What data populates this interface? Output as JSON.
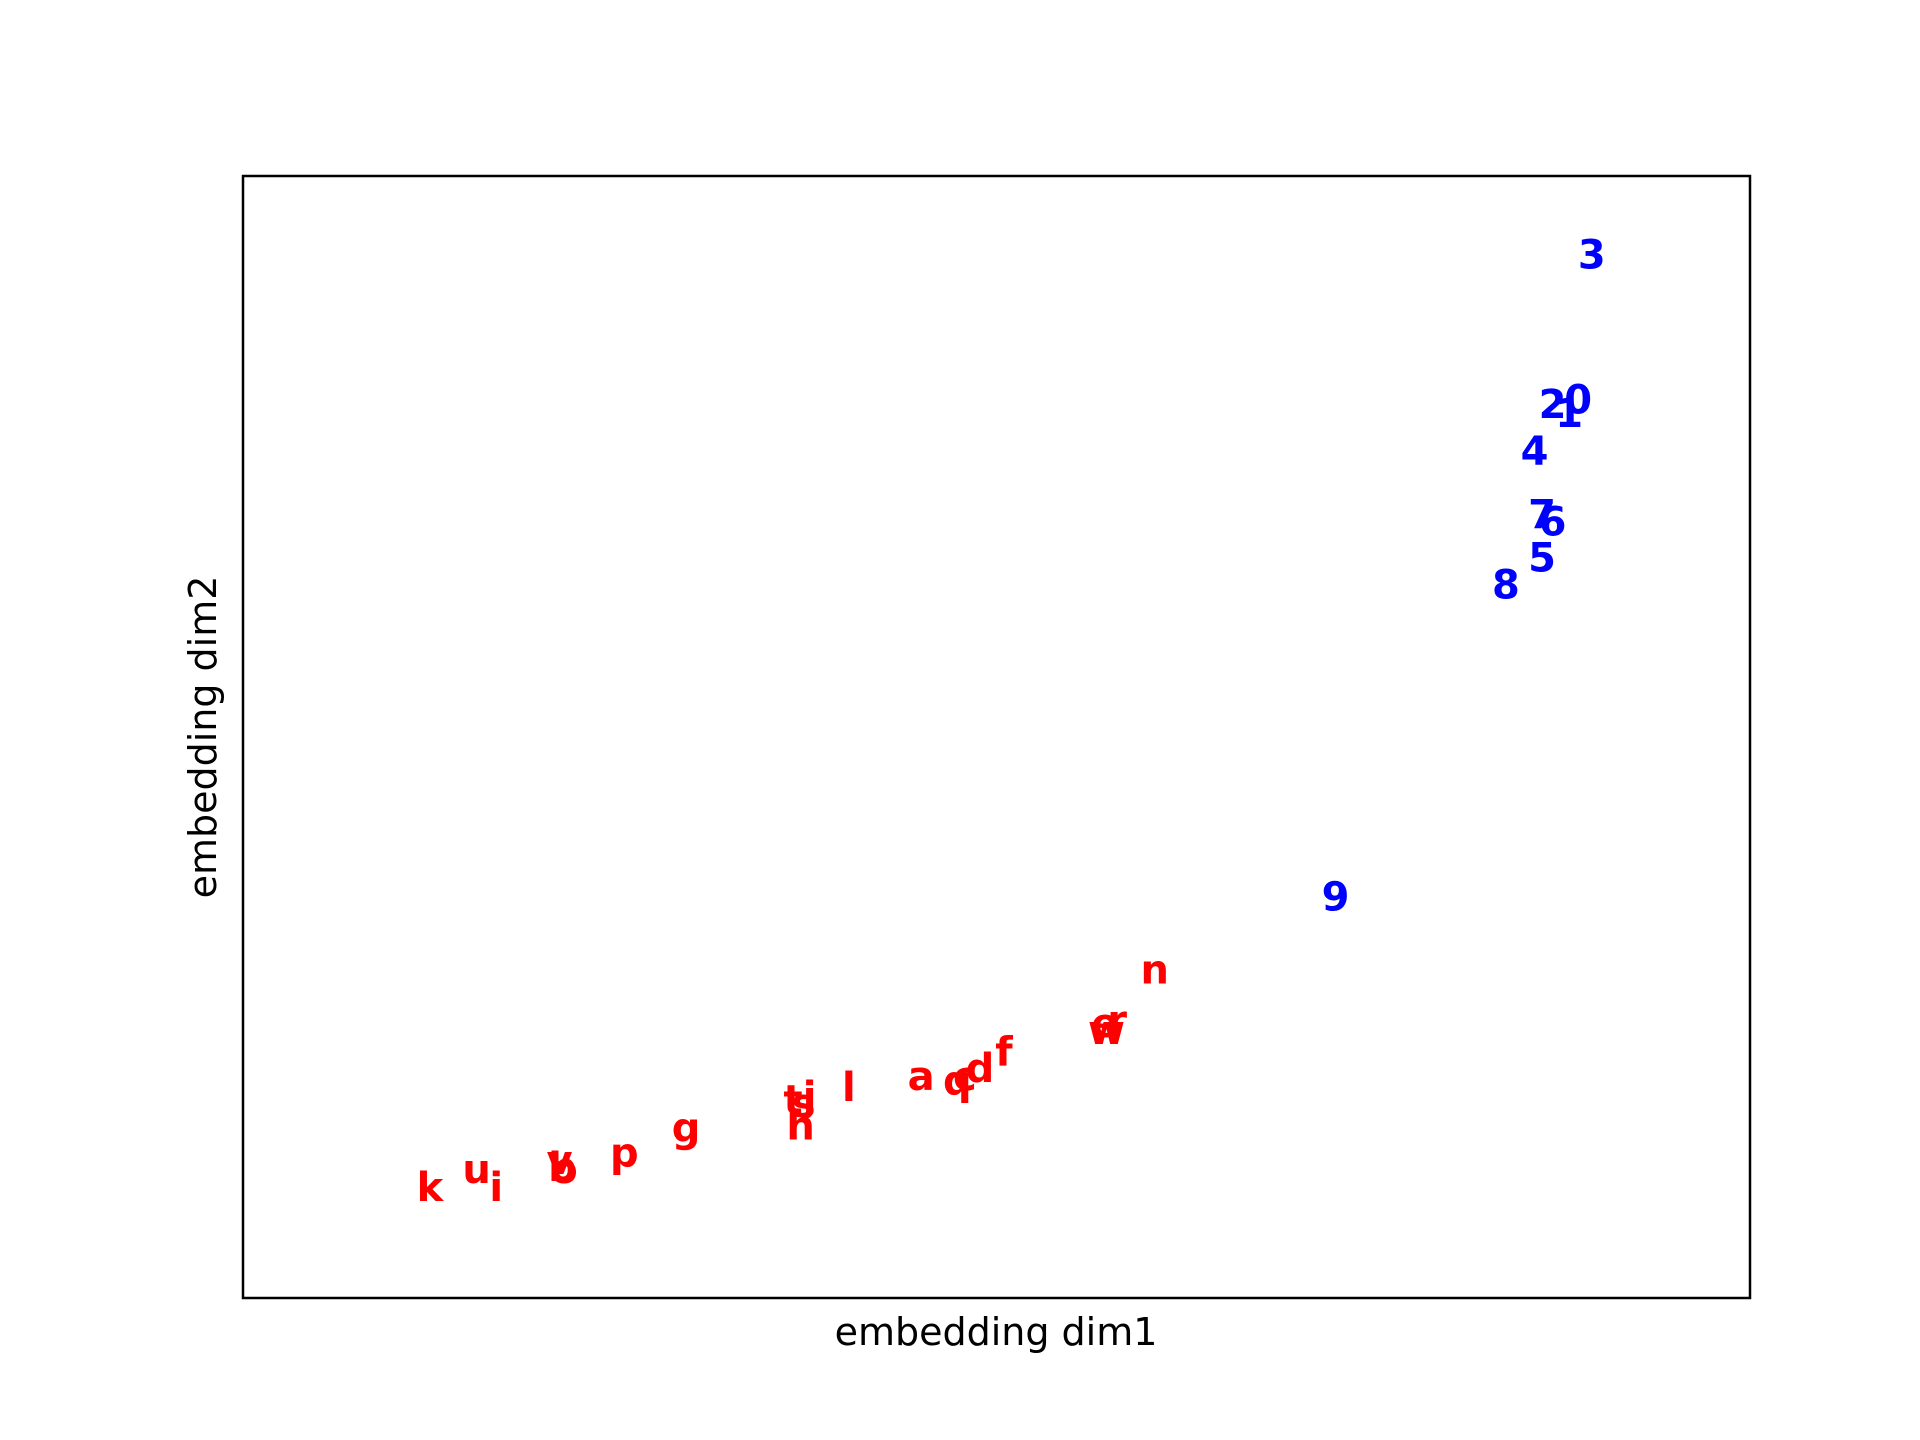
{
  "chart_data": {
    "type": "scatter",
    "title": "",
    "xlabel": "embedding dim1",
    "ylabel": "embedding dim2",
    "xlim": [
      0,
      100
    ],
    "ylim": [
      0,
      100
    ],
    "xticks_visible": false,
    "yticks_visible": false,
    "grid": false,
    "point_style": "text-labels",
    "colors": {
      "letters": "#ff0000",
      "digits": "#0000ff"
    },
    "points": [
      {
        "label": "3",
        "x": 89.5,
        "y": 92.9,
        "color": "#0000ff"
      },
      {
        "label": "0",
        "x": 88.6,
        "y": 80.0,
        "color": "#0000ff"
      },
      {
        "label": "2",
        "x": 86.9,
        "y": 79.6,
        "color": "#0000ff"
      },
      {
        "label": "1",
        "x": 88.0,
        "y": 78.8,
        "color": "#0000ff"
      },
      {
        "label": "4",
        "x": 85.7,
        "y": 75.4,
        "color": "#0000ff"
      },
      {
        "label": "7",
        "x": 86.2,
        "y": 69.8,
        "color": "#0000ff"
      },
      {
        "label": "6",
        "x": 86.9,
        "y": 69.1,
        "color": "#0000ff"
      },
      {
        "label": "5",
        "x": 86.2,
        "y": 65.9,
        "color": "#0000ff"
      },
      {
        "label": "8",
        "x": 83.8,
        "y": 63.5,
        "color": "#0000ff"
      },
      {
        "label": "9",
        "x": 72.5,
        "y": 35.7,
        "color": "#0000ff"
      },
      {
        "label": "n",
        "x": 60.5,
        "y": 29.2,
        "color": "#ff0000"
      },
      {
        "label": "r",
        "x": 58.0,
        "y": 24.7,
        "color": "#ff0000"
      },
      {
        "label": "e",
        "x": 57.2,
        "y": 24.4,
        "color": "#ff0000"
      },
      {
        "label": "w",
        "x": 57.3,
        "y": 23.8,
        "color": "#ff0000"
      },
      {
        "label": "f",
        "x": 50.5,
        "y": 21.9,
        "color": "#ff0000"
      },
      {
        "label": "d",
        "x": 48.9,
        "y": 20.4,
        "color": "#ff0000"
      },
      {
        "label": "c",
        "x": 47.9,
        "y": 19.7,
        "color": "#ff0000"
      },
      {
        "label": "a",
        "x": 45.0,
        "y": 19.7,
        "color": "#ff0000"
      },
      {
        "label": "q",
        "x": 47.4,
        "y": 19.3,
        "color": "#ff0000"
      },
      {
        "label": "l",
        "x": 40.2,
        "y": 18.7,
        "color": "#ff0000"
      },
      {
        "label": "j",
        "x": 37.6,
        "y": 17.9,
        "color": "#ff0000"
      },
      {
        "label": "t",
        "x": 36.5,
        "y": 17.6,
        "color": "#ff0000"
      },
      {
        "label": "s",
        "x": 37.2,
        "y": 17.3,
        "color": "#ff0000"
      },
      {
        "label": "h",
        "x": 37.0,
        "y": 15.3,
        "color": "#ff0000"
      },
      {
        "label": "g",
        "x": 29.4,
        "y": 15.1,
        "color": "#ff0000"
      },
      {
        "label": "p",
        "x": 25.3,
        "y": 12.9,
        "color": "#ff0000"
      },
      {
        "label": "v",
        "x": 21.0,
        "y": 12.2,
        "color": "#ff0000"
      },
      {
        "label": "b",
        "x": 21.2,
        "y": 11.6,
        "color": "#ff0000"
      },
      {
        "label": "o",
        "x": 21.3,
        "y": 11.4,
        "color": "#ff0000"
      },
      {
        "label": "u",
        "x": 15.5,
        "y": 11.4,
        "color": "#ff0000"
      },
      {
        "label": "i",
        "x": 16.8,
        "y": 9.8,
        "color": "#ff0000"
      },
      {
        "label": "k",
        "x": 12.4,
        "y": 9.8,
        "color": "#ff0000"
      }
    ]
  }
}
